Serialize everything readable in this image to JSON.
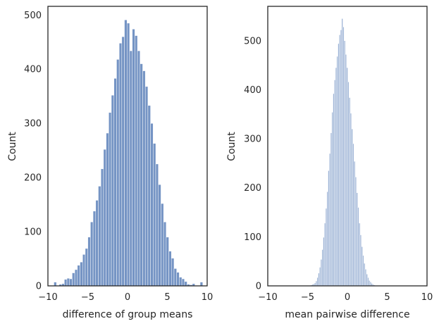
{
  "chart_data": [
    {
      "type": "histogram",
      "xlabel": "difference of group means",
      "ylabel": "Count",
      "xlim": [
        -10,
        10
      ],
      "ylim": [
        0,
        516
      ],
      "xticks": [
        -10,
        -5,
        0,
        5,
        10
      ],
      "yticks": [
        0,
        100,
        200,
        300,
        400,
        500
      ],
      "grid": false,
      "bar_color": "#7594c4",
      "bin_start": -9.25,
      "bin_width": 0.328,
      "counts": [
        7,
        0,
        3,
        4,
        12,
        14,
        13,
        24,
        30,
        38,
        44,
        58,
        69,
        90,
        118,
        138,
        158,
        184,
        216,
        252,
        282,
        320,
        352,
        383,
        418,
        448,
        460,
        491,
        485,
        434,
        474,
        462,
        434,
        410,
        397,
        368,
        333,
        300,
        263,
        225,
        187,
        152,
        118,
        90,
        64,
        51,
        32,
        25,
        16,
        13,
        8,
        3,
        2,
        4,
        1,
        0,
        7
      ]
    },
    {
      "type": "histogram",
      "xlabel": "mean pairwise difference",
      "ylabel": "Count",
      "xlim": [
        -10,
        10
      ],
      "ylim": [
        0,
        570
      ],
      "xticks": [
        -10,
        -5,
        0,
        5,
        10
      ],
      "yticks": [
        0,
        100,
        200,
        300,
        400,
        500
      ],
      "grid": false,
      "bar_color": "#9eb4d6",
      "bin_start": -4.6,
      "bin_width": 0.155,
      "counts": [
        2,
        3,
        4,
        6,
        10,
        17,
        26,
        38,
        54,
        74,
        99,
        128,
        158,
        192,
        235,
        270,
        312,
        354,
        392,
        420,
        445,
        468,
        494,
        512,
        522,
        545,
        528,
        500,
        472,
        445,
        416,
        384,
        352,
        320,
        290,
        254,
        222,
        190,
        160,
        128,
        104,
        80,
        62,
        46,
        34,
        24,
        17,
        11,
        8,
        5,
        3,
        2
      ]
    }
  ]
}
